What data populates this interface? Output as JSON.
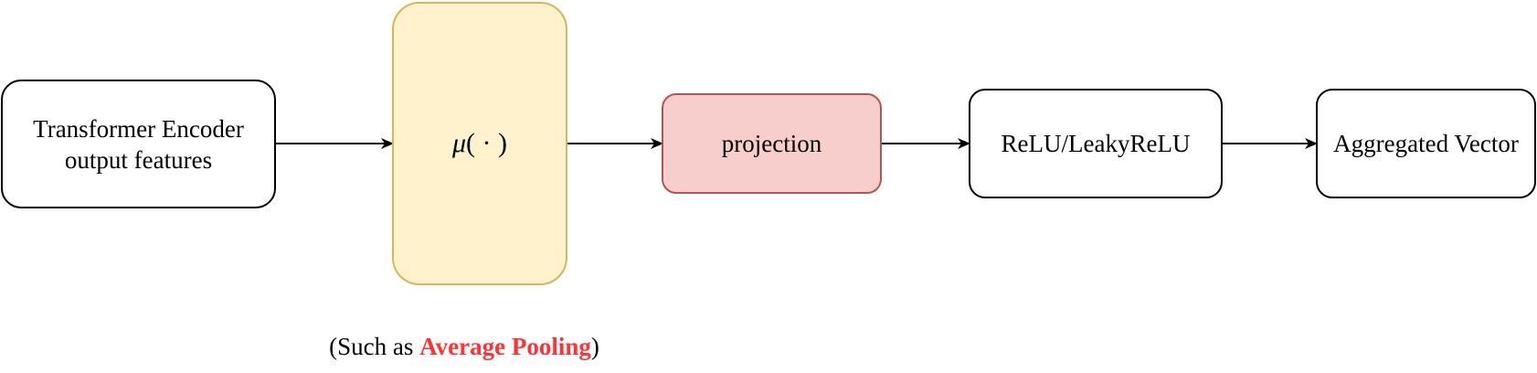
{
  "nodes": {
    "encoder": {
      "line1": "Transformer Encoder",
      "line2": "output features",
      "fill": "#ffffff",
      "stroke": "#000000"
    },
    "mean": {
      "symbol": "μ",
      "args": "( · )",
      "fill": "#fff2cc",
      "stroke": "#d6b656"
    },
    "projection": {
      "label": "projection",
      "fill": "#f8cecc",
      "stroke": "#b85450"
    },
    "relu": {
      "label": "ReLU/LeakyReLU",
      "fill": "#ffffff",
      "stroke": "#000000"
    },
    "aggregated": {
      "label": "Aggregated Vector",
      "fill": "#ffffff",
      "stroke": "#000000"
    }
  },
  "caption": {
    "prefix": "(Such as ",
    "highlight": "Average Pooling",
    "suffix": ")",
    "highlight_color": "#ff3333"
  },
  "edges": [
    {
      "from": "encoder",
      "to": "mean"
    },
    {
      "from": "mean",
      "to": "projection"
    },
    {
      "from": "projection",
      "to": "relu"
    },
    {
      "from": "relu",
      "to": "aggregated"
    }
  ],
  "colors": {
    "edge": "#000000"
  }
}
